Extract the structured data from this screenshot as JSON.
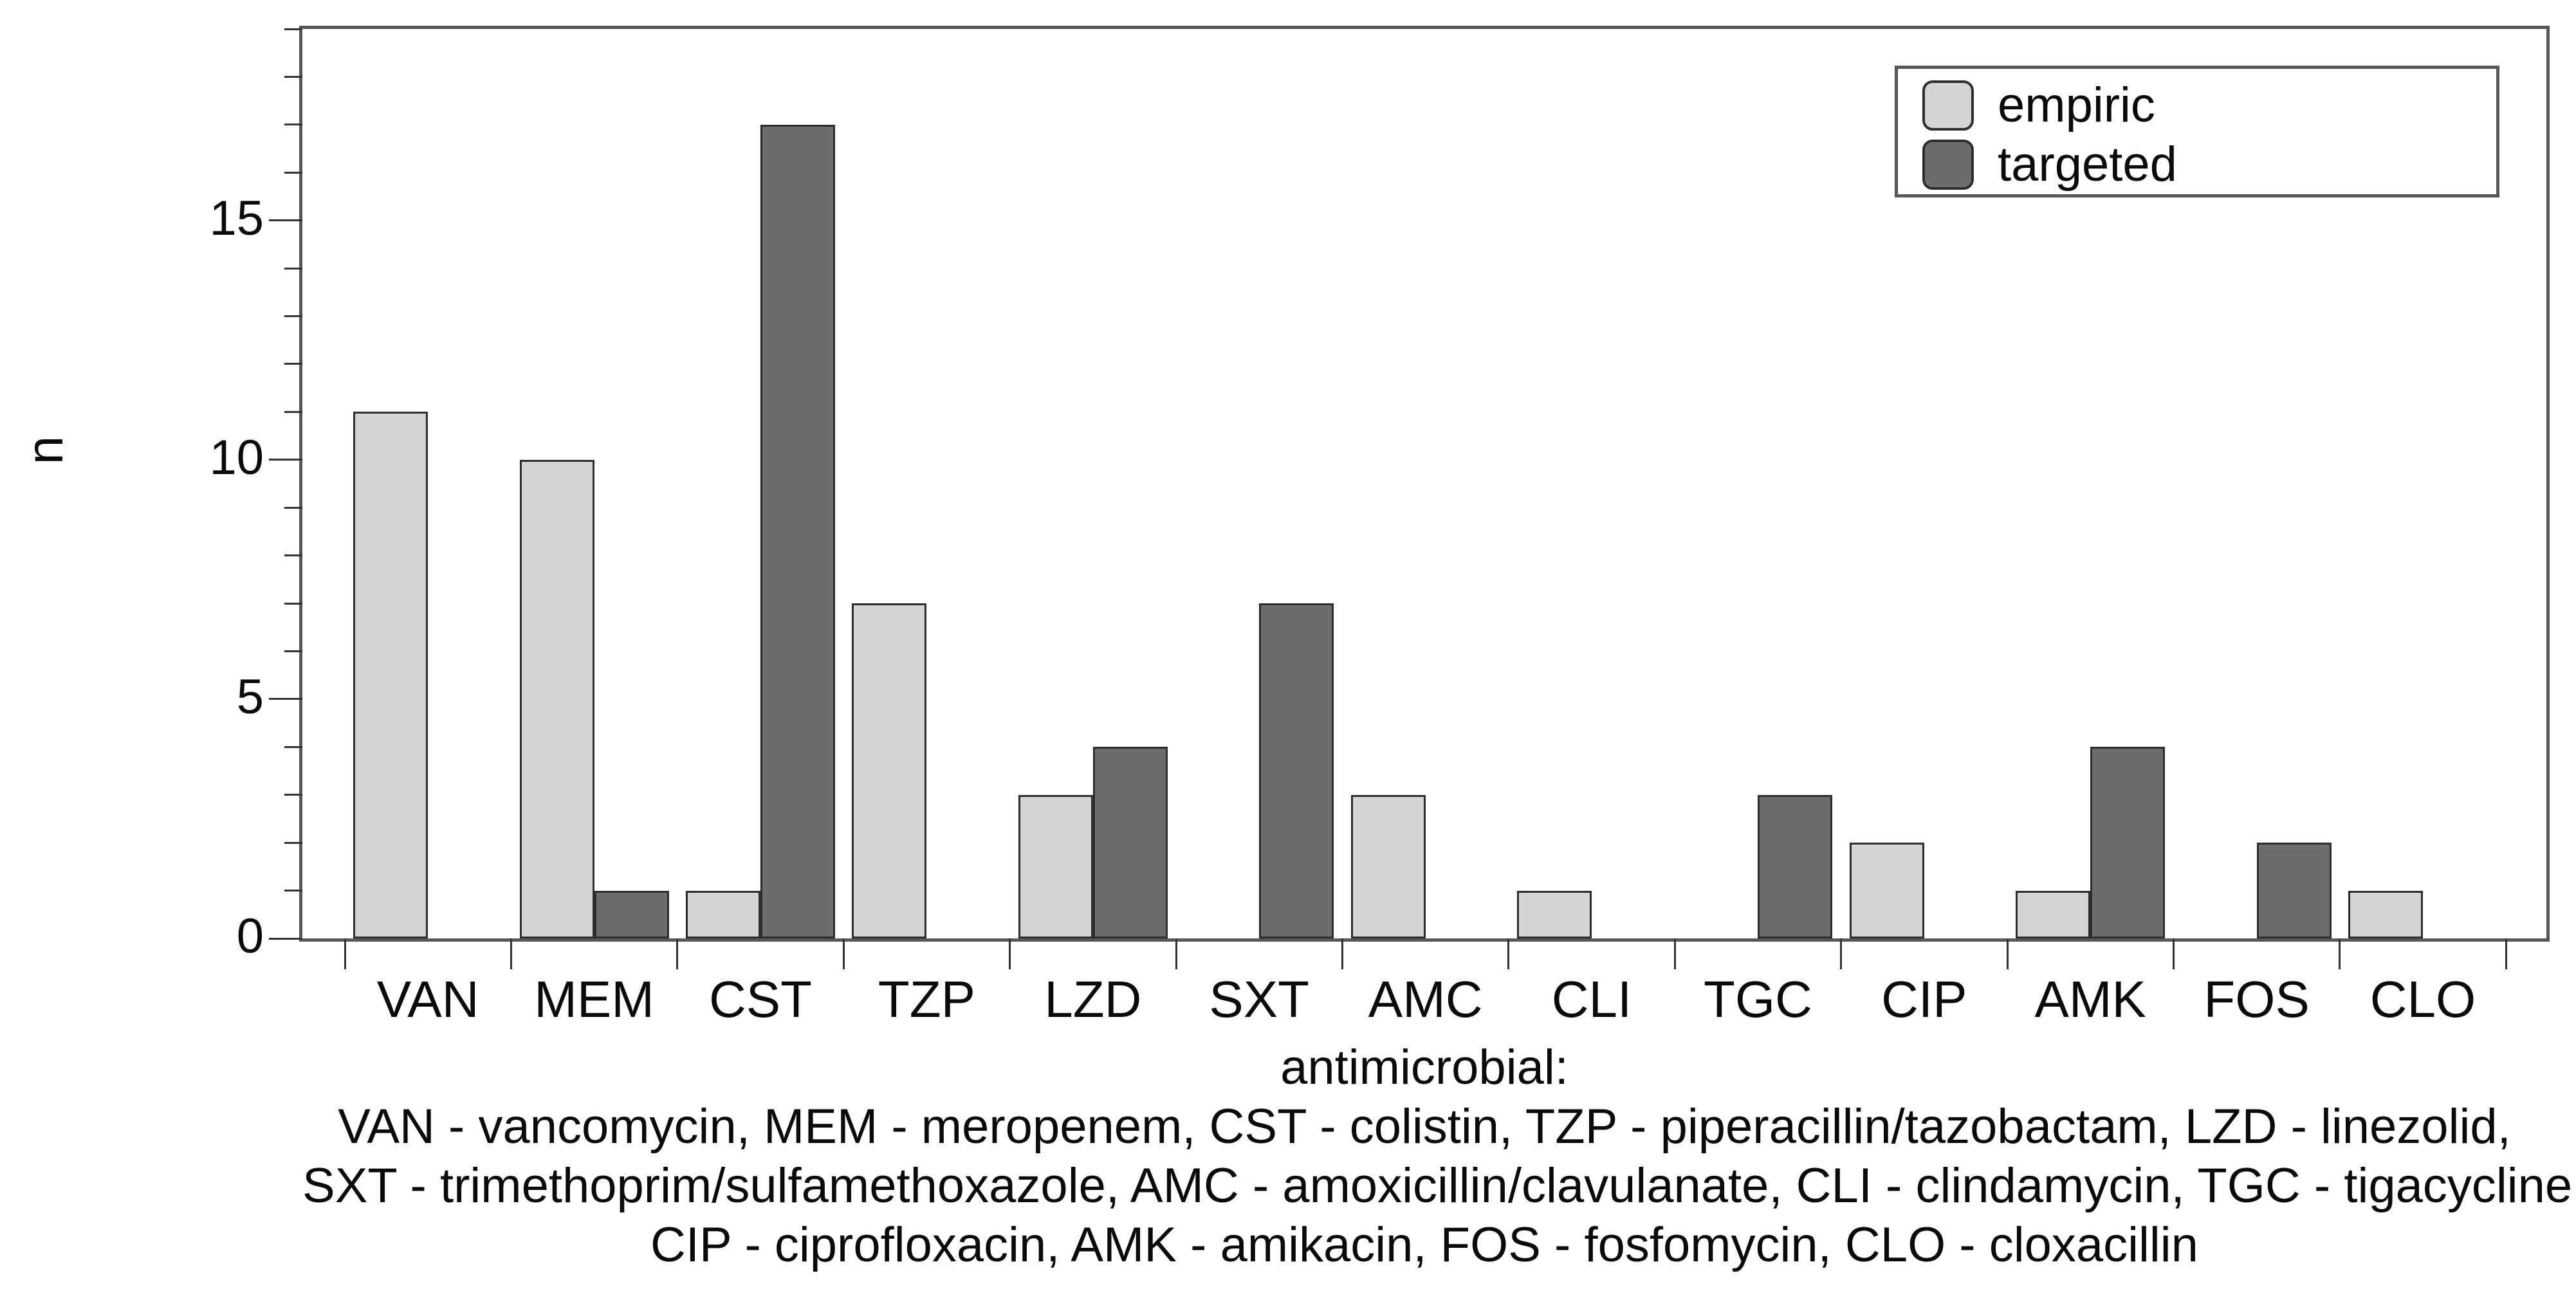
{
  "chart_data": {
    "type": "bar",
    "title": "",
    "ylabel": "n",
    "xlabel": "antimicrobial:",
    "ylim": [
      0,
      19
    ],
    "y_major_ticks": [
      0,
      5,
      10,
      15
    ],
    "y_minor_tick_step": 1,
    "grid": false,
    "legend_position": "top-right",
    "categories": [
      "VAN",
      "MEM",
      "CST",
      "TZP",
      "LZD",
      "SXT",
      "AMC",
      "CLI",
      "TGC",
      "CIP",
      "AMK",
      "FOS",
      "CLO"
    ],
    "series": [
      {
        "name": "empiric",
        "color": "#d4d4d4",
        "values": [
          11,
          10,
          1,
          7,
          3,
          0,
          3,
          1,
          0,
          2,
          1,
          0,
          1
        ]
      },
      {
        "name": "targeted",
        "color": "#6d6d6d",
        "values": [
          0,
          1,
          17,
          0,
          4,
          7,
          0,
          0,
          3,
          0,
          4,
          2,
          0
        ]
      }
    ],
    "footnote_lines": [
      "VAN - vancomycin, MEM - meropenem, CST - colistin, TZP - piperacillin/tazobactam, LZD - linezolid,",
      "SXT - trimethoprim/sulfamethoxazole, AMC - amoxicillin/clavulanate, CLI - clindamycin, TGC - tigacycline,",
      "CIP - ciprofloxacin, AMK - amikacin, FOS - fosfomycin, CLO - cloxacillin"
    ]
  },
  "legend": {
    "items": [
      {
        "label": "empiric",
        "color": "#d4d4d4"
      },
      {
        "label": "targeted",
        "color": "#6d6d6d"
      }
    ]
  },
  "colors": {
    "axis_box": "#57585a",
    "tick": "#333333",
    "bar_border": "#2e2e2e",
    "text": "#0a0a0a",
    "background": "#ffffff"
  }
}
